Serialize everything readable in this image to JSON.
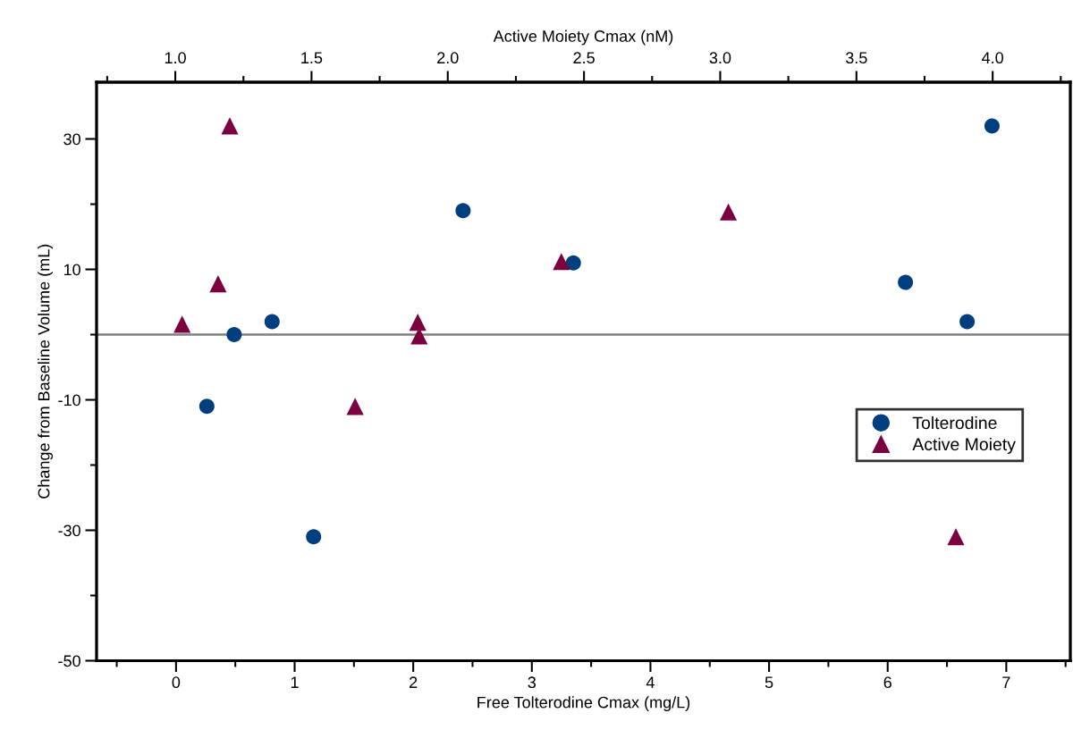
{
  "chart_data": {
    "type": "scatter",
    "xlabel": "Free Tolterodine Cmax (mg/L)",
    "x2label": "Active Moiety Cmax (nM)",
    "ylabel": "Change from Baseline Volume (mL)",
    "xlim": [
      -0.67,
      7.54
    ],
    "xticks": [
      {
        "value": -0.5,
        "label": null
      },
      0,
      {
        "value": 0.5,
        "label": null
      },
      1,
      {
        "value": 1.5,
        "label": null
      },
      2,
      {
        "value": 2.5,
        "label": null
      },
      3,
      {
        "value": 3.5,
        "label": null
      },
      4,
      {
        "value": 4.5,
        "label": null
      },
      5,
      {
        "value": 5.5,
        "label": null
      },
      6,
      {
        "value": 6.5,
        "label": null
      },
      7,
      {
        "value": 7.5,
        "label": null
      }
    ],
    "x2lim": [
      0.711,
      4.285
    ],
    "x2ticks": [
      {
        "value": 0.75,
        "label": null
      },
      {
        "value": 1.0,
        "label": "1.0"
      },
      {
        "value": 1.25,
        "label": null
      },
      1.5,
      {
        "value": 1.75,
        "label": null
      },
      {
        "value": 2.0,
        "label": "2.0"
      },
      {
        "value": 2.25,
        "label": null
      },
      2.5,
      {
        "value": 2.75,
        "label": null
      },
      {
        "value": 3.0,
        "label": "3.0"
      },
      {
        "value": 3.25,
        "label": null
      },
      3.5,
      {
        "value": 3.75,
        "label": null
      },
      {
        "value": 4.0,
        "label": "4.0"
      },
      {
        "value": 4.25,
        "label": null
      }
    ],
    "ylim": [
      -50,
      38.7
    ],
    "yticks": [
      -50,
      {
        "value": -40,
        "label": null
      },
      -30,
      {
        "value": -20,
        "label": null
      },
      -10,
      {
        "value": 0,
        "label": null
      },
      10,
      {
        "value": 20,
        "label": null
      },
      30
    ],
    "series": [
      {
        "name": "Tolterodine",
        "color": "#003f7f",
        "marker": "circle",
        "x": [
          0.26,
          0.49,
          0.81,
          1.16,
          2.42,
          3.35,
          6.15,
          6.67,
          6.88
        ],
        "values": [
          -11,
          0,
          2,
          -31,
          19,
          11,
          8,
          2,
          32
        ]
      },
      {
        "name": "Active Moiety",
        "color": "#7a0040",
        "marker": "triangle",
        "axis": "x2",
        "x": [
          1.025,
          1.157,
          1.2,
          1.66,
          1.89,
          1.895,
          2.417,
          3.03,
          3.865
        ],
        "values": [
          1.6,
          7.8,
          32,
          -11,
          1.9,
          -0.2,
          11.2,
          18.8,
          -31
        ]
      }
    ],
    "ref_lines": [
      {
        "axis": "y",
        "value": 0,
        "label": null,
        "color": "#808080"
      }
    ],
    "legend": "right",
    "grid": false
  }
}
